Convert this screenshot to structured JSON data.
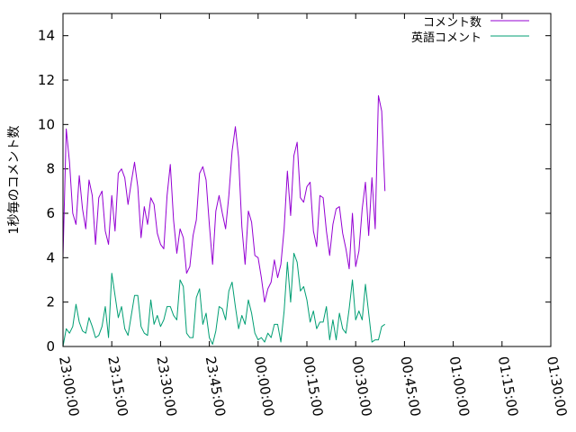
{
  "colors": {
    "comments": "#9400d3",
    "english": "#009e73",
    "axis": "#000000",
    "grid": "#a0a0a0",
    "background": "#ffffff"
  },
  "chart_data": {
    "type": "line",
    "title": "",
    "xlabel": "",
    "ylabel": "1秒毎のコメント数",
    "x_ticks": [
      "23:00:00",
      "23:15:00",
      "23:30:00",
      "23:45:00",
      "00:00:00",
      "00:15:00",
      "00:30:00",
      "00:45:00",
      "01:00:00",
      "01:15:00",
      "01:30:00"
    ],
    "xlim": [
      "23:00:00",
      "01:30:00"
    ],
    "y_ticks": [
      "0",
      "2",
      "4",
      "6",
      "8",
      "10",
      "12",
      "14"
    ],
    "ylim": [
      0,
      15
    ],
    "grid": false,
    "legend_position": "top-right",
    "sample_interval_minutes": 1,
    "x_start": "23:00:00",
    "series": [
      {
        "name": "コメント数",
        "color_key": "comments",
        "values": [
          4.0,
          9.8,
          8.3,
          6.0,
          5.5,
          7.7,
          6.2,
          5.3,
          7.5,
          6.8,
          4.6,
          6.7,
          7.0,
          5.2,
          4.6,
          6.8,
          5.2,
          7.8,
          8.0,
          7.6,
          6.4,
          7.4,
          8.3,
          7.2,
          4.9,
          6.3,
          5.5,
          6.7,
          6.4,
          5.1,
          4.6,
          4.4,
          6.8,
          8.2,
          5.7,
          4.2,
          5.3,
          4.9,
          3.3,
          3.6,
          5.0,
          5.7,
          7.8,
          8.1,
          7.5,
          5.5,
          3.7,
          6.1,
          6.8,
          6.0,
          5.3,
          6.8,
          8.8,
          9.9,
          8.5,
          5.4,
          3.7,
          6.1,
          5.6,
          4.1,
          4.0,
          3.1,
          2.0,
          2.6,
          2.9,
          3.9,
          3.1,
          3.7,
          5.3,
          7.9,
          5.9,
          8.6,
          9.2,
          6.7,
          6.5,
          7.2,
          7.4,
          5.2,
          4.5,
          6.8,
          6.7,
          5.2,
          4.1,
          5.5,
          6.2,
          6.3,
          5.1,
          4.4,
          3.5,
          6.0,
          3.6,
          4.3,
          6.2,
          7.4,
          5.0,
          7.6,
          5.3,
          11.3,
          10.6,
          7.0
        ]
      },
      {
        "name": "英語コメント",
        "color_key": "english",
        "values": [
          0.0,
          0.8,
          0.6,
          0.9,
          1.9,
          1.1,
          0.7,
          0.6,
          1.3,
          0.9,
          0.4,
          0.5,
          0.9,
          1.8,
          0.4,
          3.3,
          2.3,
          1.3,
          1.8,
          0.8,
          0.5,
          1.4,
          2.3,
          2.3,
          0.9,
          0.6,
          0.5,
          2.1,
          1.0,
          1.4,
          0.9,
          1.2,
          1.8,
          1.8,
          1.4,
          1.2,
          3.0,
          2.7,
          0.6,
          0.4,
          0.4,
          2.2,
          2.6,
          1.0,
          1.5,
          0.4,
          0.1,
          0.7,
          1.8,
          1.7,
          1.2,
          2.5,
          2.9,
          1.8,
          0.8,
          1.4,
          1.0,
          2.1,
          1.5,
          0.6,
          0.3,
          0.4,
          0.2,
          0.6,
          0.4,
          1.0,
          1.0,
          0.2,
          1.6,
          3.8,
          2.0,
          4.2,
          3.8,
          2.5,
          2.7,
          2.1,
          1.1,
          1.6,
          0.8,
          1.1,
          1.1,
          1.8,
          0.3,
          1.2,
          0.3,
          1.5,
          0.8,
          0.6,
          1.7,
          3.0,
          1.2,
          1.6,
          1.2,
          2.8,
          1.5,
          0.2,
          0.3,
          0.3,
          0.9,
          1.0
        ]
      }
    ]
  }
}
